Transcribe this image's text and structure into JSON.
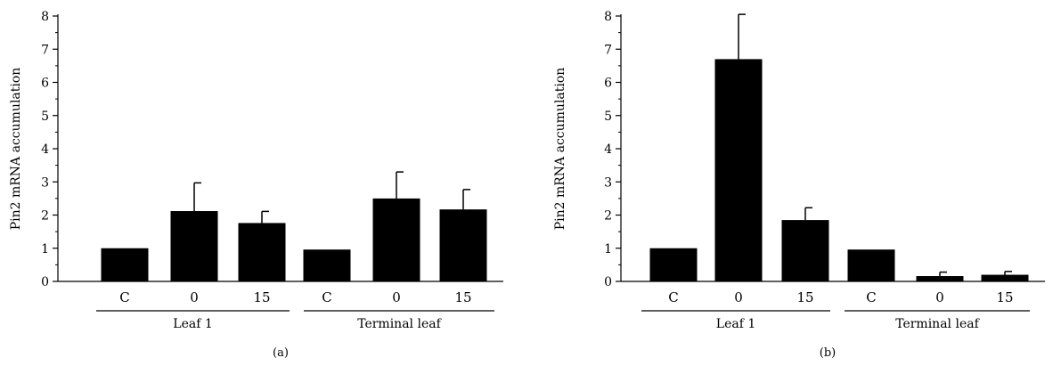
{
  "chart_data": [
    {
      "type": "bar",
      "panel_label": "(a)",
      "ylabel": "Pin2 mRNA accumulation",
      "ylim": [
        0,
        8
      ],
      "yticks": [
        0,
        1,
        2,
        3,
        4,
        5,
        6,
        7,
        8
      ],
      "categories": [
        "C",
        "0",
        "15",
        "C",
        "0",
        "15"
      ],
      "groups": [
        {
          "label": "Leaf 1",
          "categories": [
            "C",
            "0",
            "15"
          ]
        },
        {
          "label": "Terminal leaf",
          "categories": [
            "C",
            "0",
            "15"
          ]
        }
      ],
      "values": [
        1.0,
        2.12,
        1.76,
        0.96,
        2.5,
        2.17
      ],
      "errors": [
        0,
        0.85,
        0.35,
        0,
        0.8,
        0.6
      ],
      "bar_color": "#000000"
    },
    {
      "type": "bar",
      "panel_label": "(b)",
      "ylabel": "Pin2 mRNA accumulation",
      "ylim": [
        0,
        8
      ],
      "yticks": [
        0,
        1,
        2,
        3,
        4,
        5,
        6,
        7,
        8
      ],
      "categories": [
        "C",
        "0",
        "15",
        "C",
        "0",
        "15"
      ],
      "groups": [
        {
          "label": "Leaf 1",
          "categories": [
            "C",
            "0",
            "15"
          ]
        },
        {
          "label": "Terminal leaf",
          "categories": [
            "C",
            "0",
            "15"
          ]
        }
      ],
      "values": [
        1.0,
        6.7,
        1.85,
        0.96,
        0.16,
        0.2
      ],
      "errors": [
        0,
        1.35,
        0.37,
        0,
        0.12,
        0.1
      ],
      "bar_color": "#000000"
    }
  ]
}
